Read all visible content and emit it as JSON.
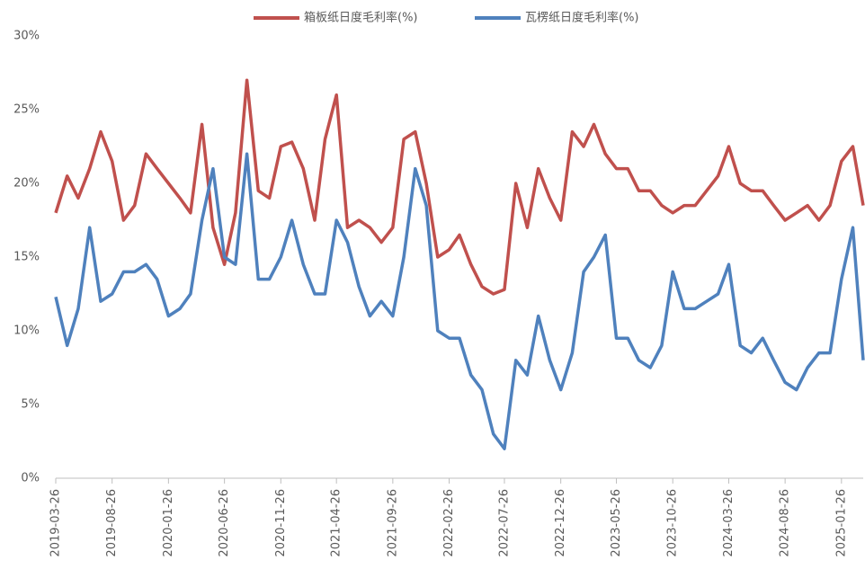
{
  "chart_data": {
    "type": "line",
    "x": [
      "2019-03-26",
      "2019-04-26",
      "2019-05-26",
      "2019-06-26",
      "2019-07-26",
      "2019-08-26",
      "2019-09-26",
      "2019-10-26",
      "2019-11-26",
      "2019-12-26",
      "2020-01-26",
      "2020-02-26",
      "2020-03-26",
      "2020-04-26",
      "2020-05-26",
      "2020-06-26",
      "2020-07-26",
      "2020-08-26",
      "2020-09-26",
      "2020-10-26",
      "2020-11-26",
      "2020-12-26",
      "2021-01-26",
      "2021-02-26",
      "2021-03-26",
      "2021-04-26",
      "2021-05-26",
      "2021-06-26",
      "2021-07-26",
      "2021-08-26",
      "2021-09-26",
      "2021-10-26",
      "2021-11-26",
      "2021-12-26",
      "2022-01-26",
      "2022-02-26",
      "2022-03-26",
      "2022-04-26",
      "2022-05-26",
      "2022-06-26",
      "2022-07-26",
      "2022-08-26",
      "2022-09-26",
      "2022-10-26",
      "2022-11-26",
      "2022-12-26",
      "2023-01-26",
      "2023-02-26",
      "2023-03-26",
      "2023-04-26",
      "2023-05-26",
      "2023-06-26",
      "2023-07-26",
      "2023-08-26",
      "2023-09-26",
      "2023-10-26",
      "2023-11-26",
      "2023-12-26",
      "2024-01-26",
      "2024-02-26",
      "2024-03-26",
      "2024-04-26",
      "2024-05-26",
      "2024-06-26",
      "2024-07-26",
      "2024-08-26",
      "2024-09-26",
      "2024-10-26",
      "2024-11-26",
      "2024-12-26",
      "2025-01-26",
      "2025-02-26",
      "2025-03-26"
    ],
    "series": [
      {
        "name": "箱板纸日度毛利率(%)",
        "color": "#c0504d",
        "values": [
          18,
          20.5,
          19,
          21,
          23.5,
          21.5,
          17.5,
          18.5,
          22,
          21,
          20,
          19,
          18,
          24,
          17,
          14.5,
          18,
          27,
          19.5,
          19,
          22.5,
          22.8,
          21,
          17.5,
          23,
          26,
          17,
          17.5,
          17,
          16,
          17,
          23,
          23.5,
          20,
          15,
          15.5,
          16.5,
          14.5,
          13,
          12.5,
          12.8,
          20,
          17,
          21,
          19,
          17.5,
          23.5,
          22.5,
          24,
          22,
          21,
          21,
          19.5,
          19.5,
          18.5,
          18,
          18.5,
          18.5,
          19.5,
          20.5,
          22.5,
          20,
          19.5,
          19.5,
          18.5,
          17.5,
          18,
          18.5,
          17.5,
          18.5,
          21.5,
          22.5,
          18.5
        ]
      },
      {
        "name": "瓦楞纸日度毛利率(%)",
        "color": "#4f81bd",
        "values": [
          12.3,
          9,
          11.5,
          17,
          12,
          12.5,
          14,
          14,
          14.5,
          13.5,
          11,
          11.5,
          12.5,
          17.5,
          21,
          15,
          14.5,
          22,
          13.5,
          13.5,
          15,
          17.5,
          14.5,
          12.5,
          12.5,
          17.5,
          16,
          13,
          11,
          12,
          11,
          15,
          21,
          18.5,
          10,
          9.5,
          9.5,
          7,
          6,
          3,
          2,
          8,
          7,
          11,
          8,
          6,
          8.5,
          14,
          15,
          16.5,
          9.5,
          9.5,
          8,
          7.5,
          9,
          14,
          11.5,
          11.5,
          12,
          12.5,
          14.5,
          9,
          8.5,
          9.5,
          8,
          6.5,
          6,
          7.5,
          8.5,
          8.5,
          13.5,
          17,
          8
        ]
      }
    ],
    "xlim": [
      "2019-03-26",
      "2025-03-26"
    ],
    "xticks": [
      "2019-03-26",
      "2019-08-26",
      "2020-01-26",
      "2020-06-26",
      "2020-11-26",
      "2021-04-26",
      "2021-09-26",
      "2022-02-26",
      "2022-07-26",
      "2022-12-26",
      "2023-05-26",
      "2023-10-26",
      "2024-03-26",
      "2024-08-26",
      "2025-01-26"
    ],
    "ylim": [
      0,
      30
    ],
    "yticks": [
      {
        "value": 0,
        "label": "0%"
      },
      {
        "value": 5,
        "label": "5%"
      },
      {
        "value": 10,
        "label": "10%"
      },
      {
        "value": 15,
        "label": "15%"
      },
      {
        "value": 20,
        "label": "20%"
      },
      {
        "value": 25,
        "label": "25%"
      },
      {
        "value": 30,
        "label": "30%"
      }
    ],
    "legend": "top"
  }
}
